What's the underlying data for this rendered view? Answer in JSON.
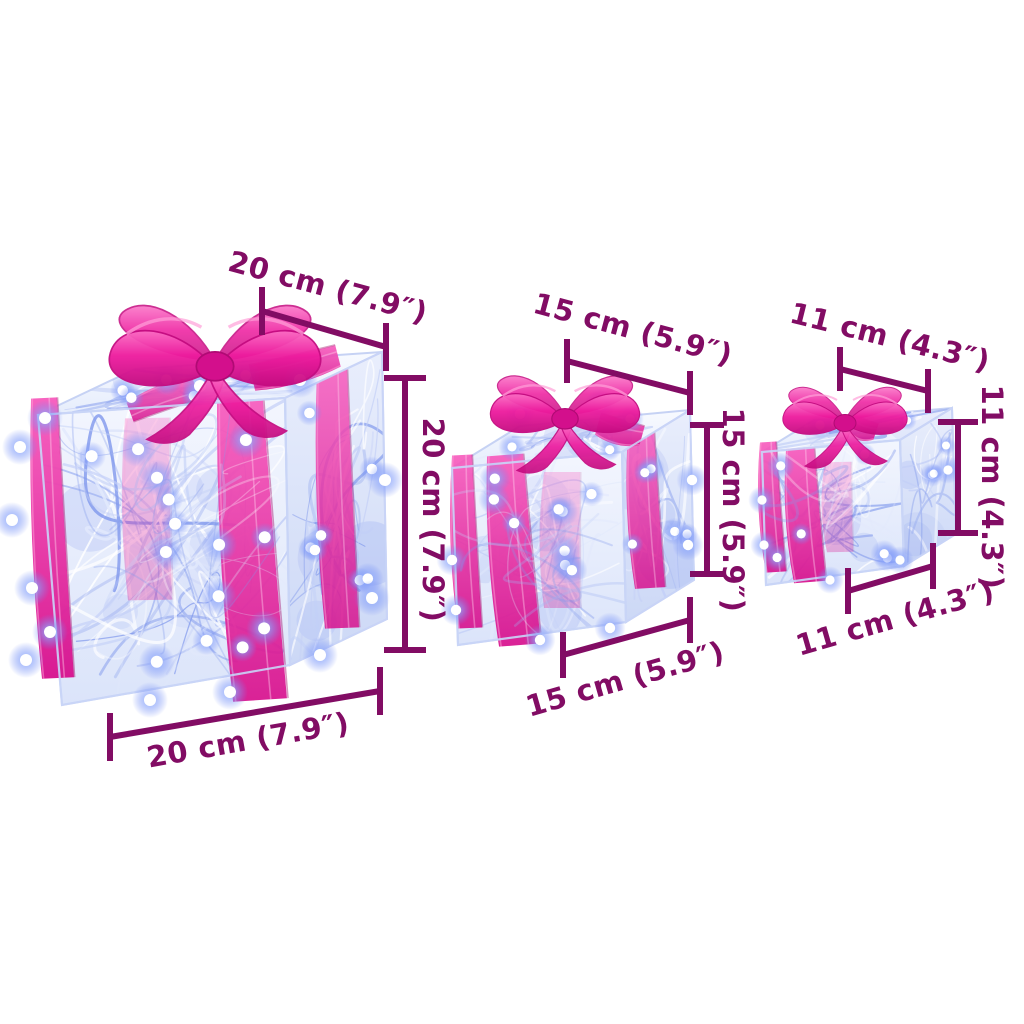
{
  "image": {
    "background": "#ffffff"
  },
  "colors": {
    "dimension": "#820c64",
    "ribbon": "#ee1b9e",
    "ribbon_dark": "#c40b80",
    "ribbon_deep": "#b00a74",
    "ribbon_light": "#fb6ec5",
    "ribbon_highlight": "#ff9fd8",
    "wire_light": "#e2e9fc",
    "wire_mid": "#c3cff7",
    "wire_deep": "#8199ec",
    "led_glow": "#6d87f5",
    "led_core": "#ffffff",
    "face_tint": "#eef2fd"
  },
  "boxes": [
    {
      "name": "large",
      "labels": {
        "top": "20 cm (7.9″)",
        "height": "20 cm (7.9″)",
        "bottom": "20 cm (7.9″)"
      }
    },
    {
      "name": "medium",
      "labels": {
        "top": "15 cm (5.9″)",
        "height": "15 cm (5.9″)",
        "bottom": "15 cm (5.9″)"
      }
    },
    {
      "name": "small",
      "labels": {
        "top": "11 cm (4.3″)",
        "height": "11 cm (4.3″)",
        "bottom": "11 cm (4.3″)"
      }
    }
  ]
}
